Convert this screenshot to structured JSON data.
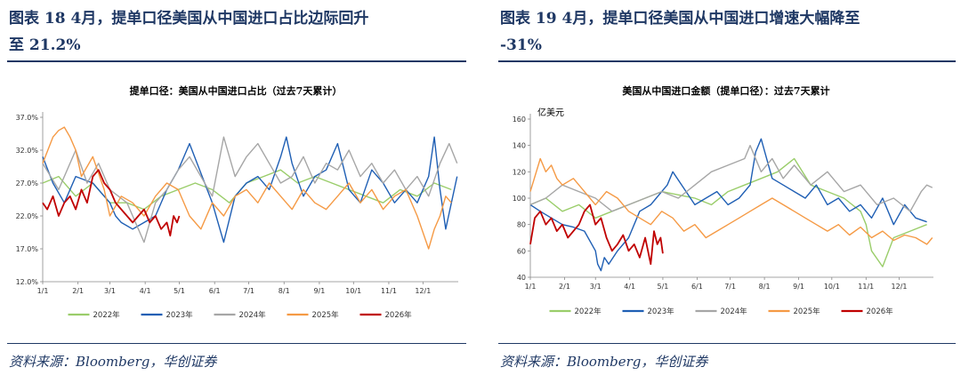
{
  "figures": [
    {
      "title_line1": "图表 18   4月，提单口径美国从中国进口占比边际回升",
      "title_line2": "至 21.2%",
      "source": "资料来源：Bloomberg，华创证券"
    },
    {
      "title_line1": "图表 19   4月，提单口径美国从中国进口增速大幅降至",
      "title_line2": "-31%",
      "source": "资料来源：Bloomberg，华创证券"
    }
  ],
  "colors": {
    "2022年": "#9ACD6A",
    "2023年": "#1F5FB4",
    "2024年": "#A6A6A6",
    "2025年": "#F59A45",
    "2026年": "#C00000"
  },
  "chart_data": [
    {
      "type": "line",
      "title": "提单口径：美国从中国进口占比（过去7天累计）",
      "ylabel": "",
      "xlabel": "",
      "ylim": [
        12,
        37
      ],
      "yticks": [
        "12.0%",
        "17.0%",
        "22.0%",
        "27.0%",
        "32.0%",
        "37.0%"
      ],
      "ytick_values": [
        12,
        17,
        22,
        27,
        32,
        37
      ],
      "x_ticks": [
        "1/1",
        "2/1",
        "3/1",
        "4/1",
        "5/1",
        "6/1",
        "7/1",
        "8/1",
        "9/1",
        "10/1",
        "11/1",
        "12/1"
      ],
      "x_ticks_day": [
        1,
        32,
        60,
        91,
        121,
        152,
        182,
        213,
        244,
        274,
        305,
        335
      ],
      "xlim_day": [
        1,
        366
      ],
      "legend_position": "bottom",
      "series": [
        {
          "name": "2022年",
          "x_day": [
            1,
            15,
            30,
            45,
            60,
            75,
            90,
            105,
            120,
            135,
            150,
            165,
            180,
            195,
            210,
            225,
            240,
            255,
            270,
            285,
            300,
            315,
            330,
            345,
            360
          ],
          "values": [
            27,
            28,
            25,
            27,
            24,
            24,
            23,
            25,
            26,
            27,
            26,
            24,
            27,
            28,
            29,
            27,
            28,
            27,
            26,
            25,
            24,
            26,
            25,
            27,
            26
          ]
        },
        {
          "name": "2023年",
          "x_day": [
            1,
            10,
            20,
            30,
            45,
            60,
            65,
            70,
            80,
            90,
            100,
            110,
            120,
            125,
            130,
            150,
            160,
            170,
            180,
            190,
            200,
            210,
            215,
            220,
            230,
            240,
            250,
            260,
            270,
            280,
            290,
            300,
            310,
            320,
            330,
            340,
            345,
            350,
            355,
            360,
            365
          ],
          "values": [
            31,
            27,
            24,
            28,
            27,
            24,
            22,
            21,
            20,
            21,
            22,
            26,
            29,
            31,
            33,
            24,
            18,
            25,
            27,
            28,
            26,
            31,
            34,
            30,
            25,
            28,
            29,
            33,
            26,
            24,
            29,
            27,
            24,
            26,
            24,
            28,
            34,
            26,
            20,
            24,
            28
          ]
        },
        {
          "name": "2024年",
          "x_day": [
            1,
            15,
            30,
            40,
            50,
            60,
            75,
            90,
            100,
            110,
            120,
            130,
            140,
            150,
            160,
            170,
            180,
            190,
            200,
            210,
            220,
            230,
            240,
            250,
            260,
            270,
            280,
            290,
            300,
            310,
            320,
            330,
            340,
            350,
            358,
            365
          ],
          "values": [
            30,
            26,
            32,
            27,
            30,
            26,
            24,
            18,
            24,
            26,
            29,
            31,
            28,
            25,
            34,
            28,
            31,
            33,
            30,
            27,
            28,
            31,
            27,
            30,
            29,
            32,
            28,
            30,
            27,
            29,
            26,
            28,
            25,
            30,
            33,
            30
          ]
        },
        {
          "name": "2025年",
          "x_day": [
            1,
            10,
            15,
            20,
            25,
            30,
            35,
            45,
            55,
            60,
            70,
            80,
            90,
            100,
            110,
            120,
            130,
            140,
            150,
            160,
            170,
            180,
            190,
            200,
            210,
            220,
            230,
            240,
            250,
            260,
            270,
            280,
            290,
            300,
            310,
            320,
            330,
            340,
            345,
            350,
            355,
            360
          ],
          "values": [
            30,
            34,
            35,
            35.5,
            34,
            32,
            28,
            31,
            26,
            22,
            25,
            24,
            22,
            25,
            27,
            26,
            22,
            20,
            24,
            22,
            25,
            26,
            24,
            27,
            25,
            23,
            26,
            24,
            23,
            25,
            27,
            24,
            26,
            23,
            25,
            26,
            22,
            17,
            20,
            22,
            25,
            24
          ]
        },
        {
          "name": "2026年",
          "x_day": [
            1,
            5,
            10,
            15,
            20,
            25,
            30,
            35,
            40,
            45,
            50,
            55,
            60,
            65,
            70,
            75,
            80,
            85,
            90,
            95,
            100,
            105,
            110,
            113,
            116,
            119,
            121
          ],
          "values": [
            24,
            23,
            25,
            22,
            24,
            25,
            23,
            26,
            24,
            28,
            29,
            27,
            26,
            24,
            23,
            22,
            21,
            22,
            23,
            21,
            22,
            20,
            21,
            19,
            22,
            21,
            22
          ]
        }
      ]
    },
    {
      "type": "line",
      "title": "美国从中国进口金额（提单口径）：过去7天累计",
      "ylabel": "亿美元",
      "xlabel": "",
      "ylim": [
        40,
        160
      ],
      "yticks": [
        "40",
        "60",
        "80",
        "100",
        "120",
        "140",
        "160"
      ],
      "ytick_values": [
        40,
        60,
        80,
        100,
        120,
        140,
        160
      ],
      "x_ticks": [
        "1/1",
        "2/1",
        "3/1",
        "4/1",
        "5/1",
        "6/1",
        "7/1",
        "8/1",
        "9/1",
        "10/1",
        "11/1",
        "12/1"
      ],
      "x_ticks_day": [
        1,
        32,
        60,
        91,
        121,
        152,
        182,
        213,
        244,
        274,
        305,
        335
      ],
      "xlim_day": [
        1,
        366
      ],
      "legend_position": "bottom",
      "series": [
        {
          "name": "2022年",
          "x_day": [
            1,
            15,
            30,
            45,
            60,
            75,
            90,
            105,
            120,
            150,
            165,
            180,
            195,
            210,
            225,
            240,
            255,
            270,
            285,
            300,
            305,
            310,
            320,
            330,
            345,
            360
          ],
          "values": [
            95,
            100,
            90,
            95,
            85,
            90,
            95,
            100,
            105,
            100,
            95,
            105,
            110,
            115,
            120,
            130,
            110,
            105,
            100,
            90,
            80,
            60,
            48,
            70,
            75,
            80
          ]
        },
        {
          "name": "2023年",
          "x_day": [
            1,
            10,
            20,
            30,
            40,
            50,
            60,
            62,
            65,
            68,
            72,
            80,
            90,
            100,
            110,
            115,
            120,
            125,
            130,
            150,
            160,
            170,
            180,
            190,
            200,
            205,
            210,
            220,
            230,
            240,
            250,
            260,
            270,
            280,
            290,
            300,
            310,
            320,
            330,
            340,
            350,
            360
          ],
          "values": [
            95,
            90,
            85,
            80,
            78,
            75,
            60,
            50,
            45,
            55,
            50,
            60,
            70,
            90,
            95,
            100,
            105,
            110,
            120,
            95,
            100,
            105,
            95,
            100,
            110,
            135,
            145,
            115,
            110,
            105,
            100,
            110,
            95,
            100,
            90,
            95,
            85,
            100,
            80,
            95,
            85,
            82
          ]
        },
        {
          "name": "2024年",
          "x_day": [
            1,
            15,
            30,
            45,
            60,
            75,
            90,
            105,
            120,
            135,
            150,
            165,
            180,
            195,
            200,
            210,
            220,
            230,
            240,
            255,
            270,
            285,
            300,
            315,
            330,
            345,
            355,
            360,
            365
          ],
          "values": [
            95,
            100,
            110,
            105,
            100,
            90,
            95,
            100,
            105,
            100,
            110,
            120,
            125,
            130,
            140,
            120,
            130,
            115,
            125,
            110,
            120,
            105,
            110,
            95,
            100,
            90,
            105,
            110,
            108
          ]
        },
        {
          "name": "2025年",
          "x_day": [
            1,
            10,
            15,
            20,
            25,
            30,
            40,
            50,
            60,
            70,
            80,
            90,
            100,
            110,
            120,
            130,
            140,
            150,
            160,
            170,
            180,
            190,
            200,
            210,
            220,
            230,
            240,
            250,
            260,
            270,
            280,
            290,
            300,
            310,
            320,
            330,
            340,
            350,
            360,
            365
          ],
          "values": [
            105,
            130,
            120,
            125,
            115,
            110,
            115,
            105,
            95,
            105,
            100,
            90,
            85,
            80,
            90,
            85,
            75,
            80,
            70,
            75,
            80,
            85,
            90,
            95,
            100,
            95,
            90,
            85,
            80,
            75,
            80,
            72,
            78,
            70,
            75,
            68,
            72,
            70,
            65,
            70
          ]
        },
        {
          "name": "2026年",
          "x_day": [
            1,
            5,
            10,
            15,
            20,
            25,
            30,
            35,
            40,
            45,
            50,
            55,
            60,
            65,
            70,
            75,
            80,
            85,
            90,
            95,
            100,
            105,
            110,
            113,
            116,
            119,
            121
          ],
          "values": [
            65,
            85,
            90,
            80,
            85,
            75,
            80,
            70,
            75,
            80,
            90,
            95,
            80,
            85,
            70,
            60,
            65,
            72,
            60,
            65,
            55,
            70,
            50,
            75,
            65,
            70,
            58
          ]
        }
      ]
    }
  ]
}
